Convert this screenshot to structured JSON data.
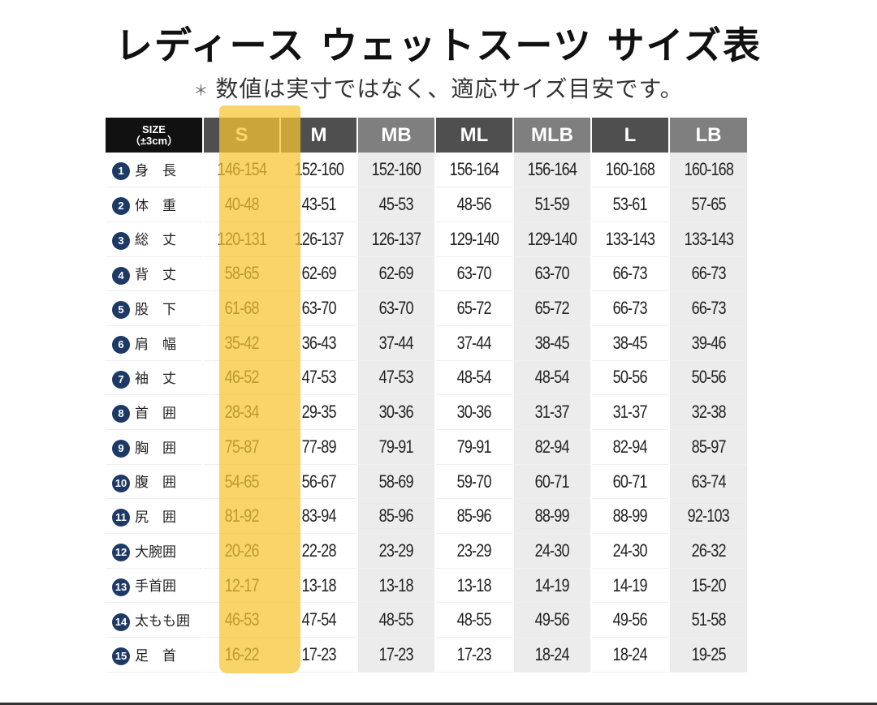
{
  "title": "レディース ウェットスーツ サイズ表",
  "subtitle_mark": "＊",
  "subtitle": "数値は実寸ではなく、適応サイズ目安です。",
  "header": {
    "size_label": "SIZE",
    "tolerance": "（±3cm）",
    "sizes": [
      "S",
      "M",
      "MB",
      "ML",
      "MLB",
      "L",
      "LB"
    ]
  },
  "highlighted_size": "S",
  "colors": {
    "highlight": "#f7c433",
    "header_dark": "#4f4f4f",
    "header_light": "#7f7f7f",
    "number_badge": "#1d3a66"
  },
  "rows": [
    {
      "no": "1",
      "label": "身　長",
      "values": [
        "146-154",
        "152-160",
        "152-160",
        "156-164",
        "156-164",
        "160-168",
        "160-168"
      ]
    },
    {
      "no": "2",
      "label": "体　重",
      "values": [
        "40-48",
        "43-51",
        "45-53",
        "48-56",
        "51-59",
        "53-61",
        "57-65"
      ]
    },
    {
      "no": "3",
      "label": "総　丈",
      "values": [
        "120-131",
        "126-137",
        "126-137",
        "129-140",
        "129-140",
        "133-143",
        "133-143"
      ]
    },
    {
      "no": "4",
      "label": "背　丈",
      "values": [
        "58-65",
        "62-69",
        "62-69",
        "63-70",
        "63-70",
        "66-73",
        "66-73"
      ]
    },
    {
      "no": "5",
      "label": "股　下",
      "values": [
        "61-68",
        "63-70",
        "63-70",
        "65-72",
        "65-72",
        "66-73",
        "66-73"
      ]
    },
    {
      "no": "6",
      "label": "肩　幅",
      "values": [
        "35-42",
        "36-43",
        "37-44",
        "37-44",
        "38-45",
        "38-45",
        "39-46"
      ]
    },
    {
      "no": "7",
      "label": "袖　丈",
      "values": [
        "46-52",
        "47-53",
        "47-53",
        "48-54",
        "48-54",
        "50-56",
        "50-56"
      ]
    },
    {
      "no": "8",
      "label": "首　囲",
      "values": [
        "28-34",
        "29-35",
        "30-36",
        "30-36",
        "31-37",
        "31-37",
        "32-38"
      ]
    },
    {
      "no": "9",
      "label": "胸　囲",
      "values": [
        "75-87",
        "77-89",
        "79-91",
        "79-91",
        "82-94",
        "82-94",
        "85-97"
      ]
    },
    {
      "no": "10",
      "label": "腹　囲",
      "values": [
        "54-65",
        "56-67",
        "58-69",
        "59-70",
        "60-71",
        "60-71",
        "63-74"
      ]
    },
    {
      "no": "11",
      "label": "尻　囲",
      "values": [
        "81-92",
        "83-94",
        "85-96",
        "85-96",
        "88-99",
        "88-99",
        "92-103"
      ]
    },
    {
      "no": "12",
      "label": "大腕囲",
      "values": [
        "20-26",
        "22-28",
        "23-29",
        "23-29",
        "24-30",
        "24-30",
        "26-32"
      ]
    },
    {
      "no": "13",
      "label": "手首囲",
      "values": [
        "12-17",
        "13-18",
        "13-18",
        "13-18",
        "14-19",
        "14-19",
        "15-20"
      ]
    },
    {
      "no": "14",
      "label": "太もも囲",
      "values": [
        "46-53",
        "47-54",
        "48-55",
        "48-55",
        "49-56",
        "49-56",
        "51-58"
      ]
    },
    {
      "no": "15",
      "label": "足　首",
      "values": [
        "16-22",
        "17-23",
        "17-23",
        "17-23",
        "18-24",
        "18-24",
        "19-25"
      ]
    }
  ]
}
